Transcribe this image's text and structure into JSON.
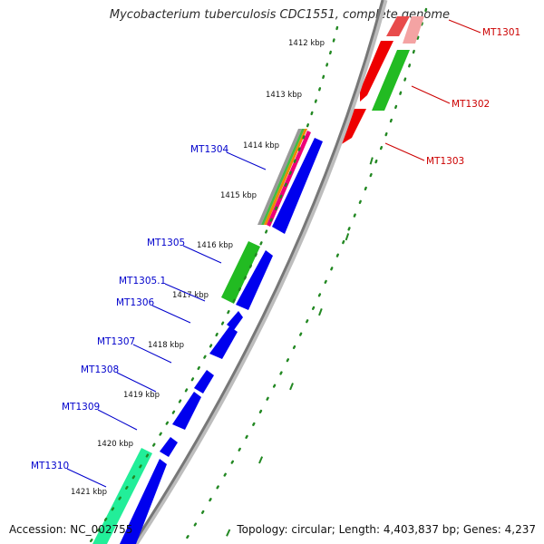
{
  "title": "Mycobacterium tuberculosis CDC1551, complete genome",
  "footer": {
    "accession": "Accession: NC_002755",
    "topology": "Topology: circular; Length: 4,403,837 bp; Genes: 4,237"
  },
  "colors": {
    "reverse_label": "#0000cc",
    "forward_label": "#cc0000",
    "blue_gene": "#0000ee",
    "red_gene": "#ee0000",
    "green_feature": "#22bb22",
    "teal_feature": "#22ee99",
    "axis": "#777777",
    "ticks": "#228822"
  },
  "kbp_ticks": [
    "1412 kbp",
    "1413 kbp",
    "1414 kbp",
    "1415 kbp",
    "1416 kbp",
    "1417 kbp",
    "1418 kbp",
    "1419 kbp",
    "1420 kbp",
    "1421 kbp"
  ],
  "gene_labels": {
    "forward": [
      "MT1301",
      "MT1302",
      "MT1303"
    ],
    "reverse": [
      "MT1304",
      "MT1305",
      "MT1305.1",
      "MT1306",
      "MT1307",
      "MT1308",
      "MT1309",
      "MT1310"
    ]
  }
}
